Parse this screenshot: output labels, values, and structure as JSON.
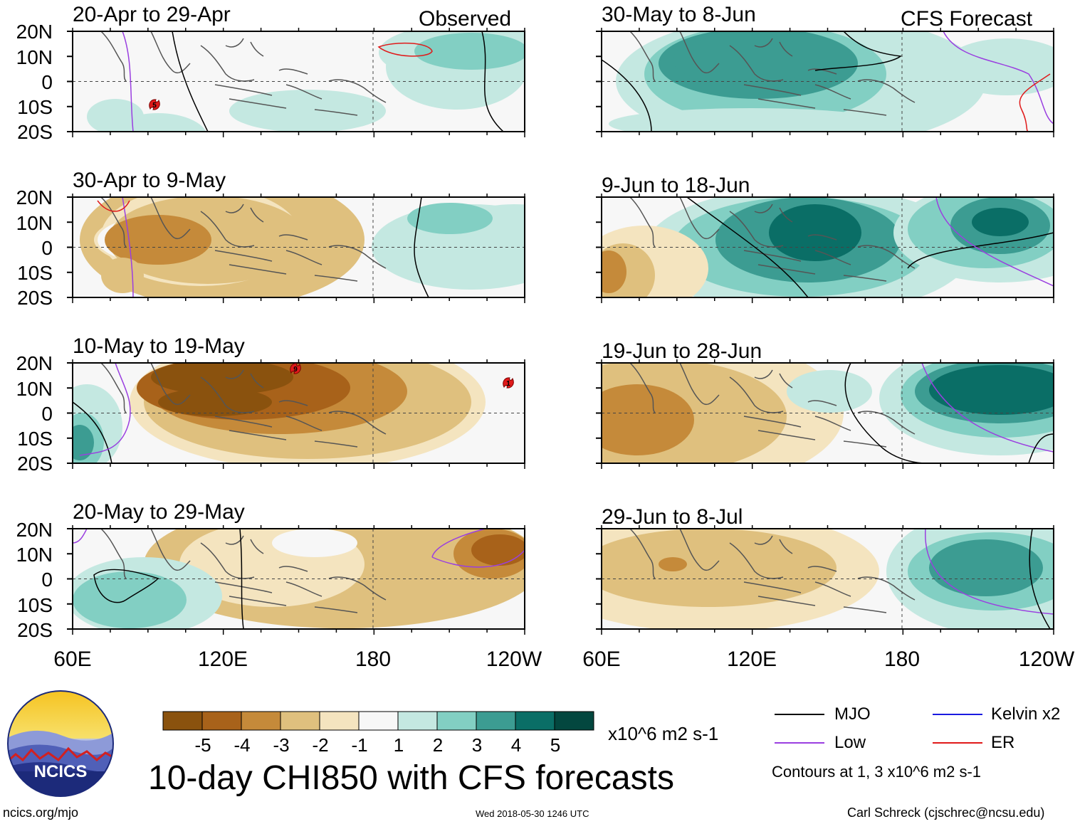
{
  "title": "10-day CHI850 with CFS forecasts",
  "observed_label": "Observed",
  "forecast_label": "CFS Forecast",
  "panels": [
    {
      "period": "20-Apr to 29-Apr",
      "mode": "observed"
    },
    {
      "period": "30-Apr to 9-May",
      "mode": "observed"
    },
    {
      "period": "10-May to 19-May",
      "mode": "observed"
    },
    {
      "period": "20-May to 29-May",
      "mode": "observed"
    },
    {
      "period": "30-May to 8-Jun",
      "mode": "forecast"
    },
    {
      "period": "9-Jun to 18-Jun",
      "mode": "forecast"
    },
    {
      "period": "19-Jun to 28-Jun",
      "mode": "forecast"
    },
    {
      "period": "29-Jun to 8-Jul",
      "mode": "forecast"
    }
  ],
  "lat_labels": [
    "20N",
    "10N",
    "0",
    "10S",
    "20S"
  ],
  "lon_labels": [
    "60E",
    "120E",
    "180",
    "120W"
  ],
  "colorbar": {
    "unit": "x10^6 m2 s-1",
    "labels": [
      "-5",
      "-4",
      "-3",
      "-2",
      "-1",
      "1",
      "2",
      "3",
      "4",
      "5"
    ],
    "colors": [
      "#8a520e",
      "#a8621a",
      "#c58a3a",
      "#dfc07e",
      "#f4e4bf",
      "#f7f7f7",
      "#c4e8e1",
      "#82cfc3",
      "#3c9c92",
      "#0a6e66",
      "#03473f"
    ]
  },
  "legend": {
    "items": [
      {
        "label": "MJO",
        "color": "#000000"
      },
      {
        "label": "Low",
        "color": "#9a3fe0"
      },
      {
        "label": "Kelvin x2",
        "color": "#1a1ae0"
      },
      {
        "label": "ER",
        "color": "#e01a1a"
      }
    ],
    "note": "Contours at 1, 3 x10^6 m2 s-1"
  },
  "logo": {
    "text": "NCICS"
  },
  "footer": {
    "url": "ncics.org/mjo",
    "timestamp": "Wed 2018-05-30 1246 UTC",
    "author": "Carl Schreck (cjschrec@ncsu.edu)"
  },
  "storm_symbols": [
    {
      "panel": 0,
      "label": "5"
    },
    {
      "panel": 2,
      "label": "9"
    },
    {
      "panel": 2,
      "label": "1"
    }
  ]
}
